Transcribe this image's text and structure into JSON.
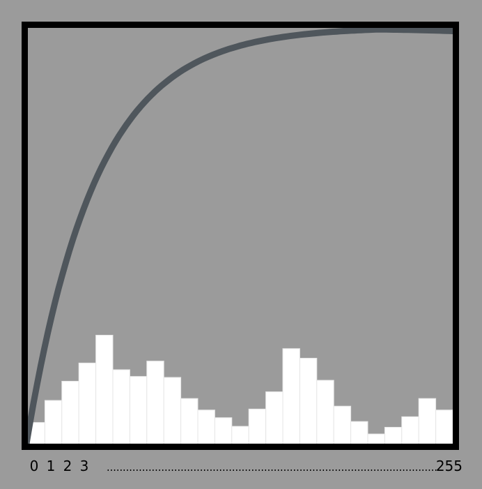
{
  "chart_data": {
    "type": "bar",
    "title": "",
    "xlabel": "",
    "ylabel": "",
    "grid": false,
    "legend": "none",
    "x_tick_labels": [
      "0",
      "1",
      "2",
      "3"
    ],
    "x_end_label": "255",
    "x_ellipsis": ".......................................................................................................",
    "histogram_values": [
      2.5,
      4.8,
      6.8,
      8.7,
      11.6,
      8.0,
      7.3,
      8.9,
      7.2,
      5.0,
      3.8,
      3.0,
      2.1,
      3.9,
      5.7,
      10.2,
      9.2,
      6.9,
      4.2,
      2.6,
      1.3,
      2.0,
      3.1,
      5.0,
      3.8
    ],
    "histogram_max": 12,
    "curve": {
      "description_points": [
        [
          0,
          0
        ],
        [
          0.05,
          0.3
        ],
        [
          0.1,
          0.5
        ],
        [
          0.2,
          0.7
        ],
        [
          0.3,
          0.82
        ],
        [
          0.4,
          0.9
        ],
        [
          0.5,
          0.95
        ],
        [
          0.65,
          0.99
        ],
        [
          0.8,
          1.0
        ],
        [
          1.0,
          0.99
        ]
      ],
      "x_range": [
        0,
        1
      ],
      "y_range": [
        0,
        1
      ]
    },
    "colors": {
      "background": "#9b9b9b",
      "frame": "#000000",
      "bars": "#ffffff",
      "bar_edge": "#e6e6e6",
      "curve": "#4f565c"
    }
  }
}
